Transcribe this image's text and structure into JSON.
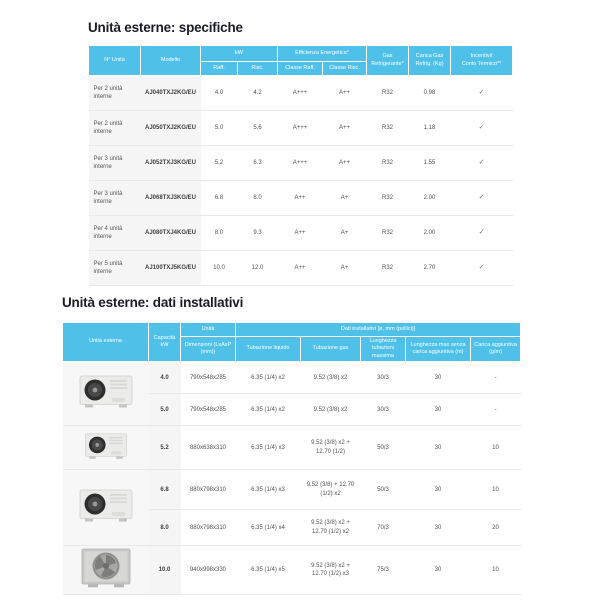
{
  "colors": {
    "header_blue": "#4fc0e8",
    "row_gray": "#f5f5f5",
    "title_dark": "#1b1b28",
    "body_text": "#4e4e4e"
  },
  "sections": {
    "spec_title": "Unità esterne: specifiche",
    "install_title": "Unità esterne: dati installativi"
  },
  "spec_table": {
    "header": {
      "col_unita": "N° Unità",
      "col_modello": "Modello",
      "group_kw": "kW",
      "sub_raff": "Raff.",
      "sub_risc": "Risc.",
      "group_efficienza": "Efficienza Energetica*",
      "sub_classe_raff": "Classe Raff.",
      "sub_classe_risc": "Classe Risc.",
      "col_gas_line1": "Gas",
      "col_gas_line2": "Refrigerante*",
      "col_carica_line1": "Carica Gas",
      "col_carica_line2": "Refrig. (Kg)",
      "col_incentivi_line1": "Incentivi/",
      "col_incentivi_line2": "Conto Termico**"
    },
    "rows": [
      {
        "unita": "Per 2 unità interne",
        "modello": "AJ040TXJ2KG/EU",
        "raff": "4.0",
        "risc": "4.2",
        "classe_raff": "A+++",
        "classe_risc": "A++",
        "gas": "R32",
        "carica": "0.98",
        "incentivi": "✓"
      },
      {
        "unita": "Per 2 unità interne",
        "modello": "AJ050TXJ2KG/EU",
        "raff": "5.0",
        "risc": "5.6",
        "classe_raff": "A+++",
        "classe_risc": "A++",
        "gas": "R32",
        "carica": "1.18",
        "incentivi": "✓"
      },
      {
        "unita": "Per 3 unità interne",
        "modello": "AJ052TXJ3KG/EU",
        "raff": "5.2",
        "risc": "6.3",
        "classe_raff": "A+++",
        "classe_risc": "A++",
        "gas": "R32",
        "carica": "1.55",
        "incentivi": "✓"
      },
      {
        "unita": "Per 3 unità interne",
        "modello": "AJ068TXJ3KG/EU",
        "raff": "6.8",
        "risc": "8.0",
        "classe_raff": "A++",
        "classe_risc": "A+",
        "gas": "R32",
        "carica": "2.00",
        "incentivi": "✓"
      },
      {
        "unita": "Per 4 unità interne",
        "modello": "AJ080TXJ4KG/EU",
        "raff": "8.0",
        "risc": "9.3",
        "classe_raff": "A++",
        "classe_risc": "A+",
        "gas": "R32",
        "carica": "2.00",
        "incentivi": "✓"
      },
      {
        "unita": "Per 5 unità interne",
        "modello": "AJ100TXJ5KG/EU",
        "raff": "10.0",
        "risc": "12.0",
        "classe_raff": "A++",
        "classe_risc": "A+",
        "gas": "R32",
        "carica": "2.70",
        "incentivi": "✓"
      }
    ]
  },
  "install_table": {
    "header": {
      "col_unita_esterna": "Unità esterna",
      "col_capacita_line1": "Capacità",
      "col_capacita_line2": "kW",
      "group_unita": "Unità",
      "sub_dimensioni": "Dimensioni (LxAxP (mm))",
      "group_dati": "Dati installativi [ø, mm (pollici)]",
      "sub_liquido": "Tubazione liquido",
      "sub_gas": "Tubazione gas",
      "sub_lunghezza": "Lunghezza tubazioni massima",
      "sub_max_senza": "Lunghezza max senza carica aggiuntiva (m)",
      "sub_carica": "Carica aggiuntiva (g/m)"
    },
    "rows": [
      {
        "kw": "4.0",
        "dim": "790x548x285",
        "liquido": "6.35 (1/4) x2",
        "gas": "9.52 (3/8) x2",
        "lunghezza": "30/3",
        "max_senza": "30",
        "carica": "-",
        "img": {
          "rowspan": 2,
          "variant": "small"
        }
      },
      {
        "kw": "5.0",
        "dim": "790x548x285",
        "liquido": "6.35 (1/4) x2",
        "gas": "9.52 (3/8) x2",
        "lunghezza": "30/3",
        "max_senza": "30",
        "carica": "-"
      },
      {
        "kw": "5.2",
        "dim": "880x638x310",
        "liquido": "6.35 (1/4) x3",
        "gas": "9.52 (3/8) x2 + 12.70 (1/2)",
        "lunghezza": "50/3",
        "max_senza": "30",
        "carica": "10",
        "img": {
          "rowspan": 1,
          "variant": "medium"
        }
      },
      {
        "kw": "6.8",
        "dim": "880x798x310",
        "liquido": "6.35 (1/4) x3",
        "gas": "9.52 (3/8) + 12.70 (1/2) x2",
        "lunghezza": "50/3",
        "max_senza": "30",
        "carica": "10",
        "img": {
          "rowspan": 2,
          "variant": "large"
        }
      },
      {
        "kw": "8.0",
        "dim": "880x798x310",
        "liquido": "6.35 (1/4) x4",
        "gas": "9.52 (3/8) x2 + 12.70 (1/2) x2",
        "lunghezza": "70/3",
        "max_senza": "30",
        "carica": "20"
      },
      {
        "kw": "10.0",
        "dim": "940x998x330",
        "liquido": "6.35 (1/4) x5",
        "gas": "9.52 (3/8) x2 + 12.70 (1/2) x3",
        "lunghezza": "75/3",
        "max_senza": "30",
        "carica": "10",
        "img": {
          "rowspan": 1,
          "variant": "xl"
        }
      }
    ]
  }
}
